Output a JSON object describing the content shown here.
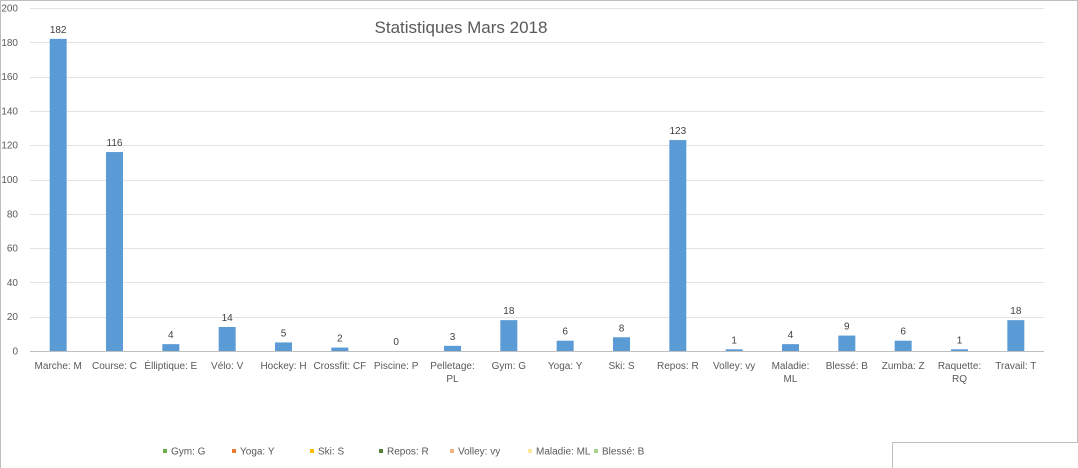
{
  "chart_data": {
    "type": "bar",
    "title": "Statistiques Mars 2018",
    "categories": [
      [
        "Marche: M"
      ],
      [
        "Course: C"
      ],
      [
        "Élliptique: E"
      ],
      [
        "Vélo: V"
      ],
      [
        "Hockey: H"
      ],
      [
        "Crossfit: CF"
      ],
      [
        "Piscine: P"
      ],
      [
        "Pelletage:",
        "PL"
      ],
      [
        "Gym: G"
      ],
      [
        "Yoga: Y"
      ],
      [
        "Ski: S"
      ],
      [
        "Repos: R"
      ],
      [
        "Volley: vy"
      ],
      [
        "Maladie:",
        "ML"
      ],
      [
        "Blessé: B"
      ],
      [
        "Zumba: Z"
      ],
      [
        "Raquette:",
        "RQ"
      ],
      [
        "Travail: T"
      ]
    ],
    "values": [
      182,
      116,
      4,
      14,
      5,
      2,
      0,
      3,
      18,
      6,
      8,
      123,
      1,
      4,
      9,
      6,
      1,
      18
    ],
    "ylim": [
      0,
      200
    ],
    "yticks": [
      0,
      20,
      40,
      60,
      80,
      100,
      120,
      140,
      160,
      180,
      200
    ],
    "grid": true,
    "bar_color": "#5b9bd5",
    "legend": [
      {
        "label": "Gym: G",
        "color": "#70ad47"
      },
      {
        "label": "Yoga: Y",
        "color": "#ed7d31"
      },
      {
        "label": "Ski: S",
        "color": "#ffc000"
      },
      {
        "label": "Repos: R",
        "color": "#548235"
      },
      {
        "label": "Volley: vy",
        "color": "#f4b183"
      },
      {
        "label": "Maladie: ML",
        "color": "#ffe699"
      },
      {
        "label": "Blessé: B",
        "color": "#a9d18e"
      }
    ],
    "legend_position": "bottom"
  }
}
